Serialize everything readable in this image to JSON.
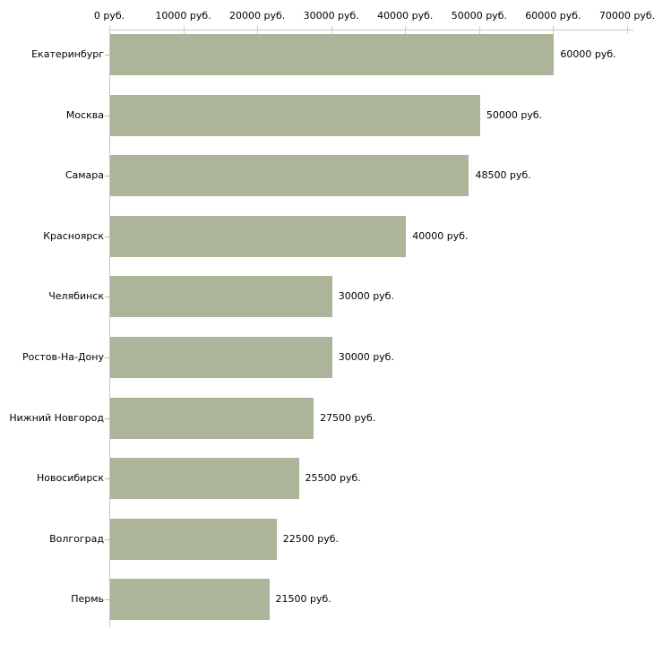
{
  "chart_data": {
    "type": "bar",
    "orientation": "horizontal",
    "title": "",
    "xlabel": "",
    "ylabel": "",
    "grid": false,
    "legend": false,
    "categories": [
      "Екатеринбург",
      "Москва",
      "Самара",
      "Красноярск",
      "Челябинск",
      "Ростов-На-Дону",
      "Нижний Новгород",
      "Новосибирск",
      "Волгоград",
      "Пермь"
    ],
    "values": [
      60000,
      50000,
      48500,
      40000,
      30000,
      30000,
      27500,
      25500,
      22500,
      21500
    ],
    "value_labels": [
      "60000 руб.",
      "50000 руб.",
      "48500 руб.",
      "40000 руб.",
      "30000 руб.",
      "30000 руб.",
      "27500 руб.",
      "25500 руб.",
      "22500 руб.",
      "21500 руб."
    ],
    "x_axis": {
      "position": "top",
      "min": 0,
      "max": 70000,
      "ticks": [
        0,
        10000,
        20000,
        30000,
        40000,
        50000,
        60000,
        70000
      ],
      "tick_labels": [
        "0 руб.",
        "10000 руб.",
        "20000 руб.",
        "30000 руб.",
        "40000 руб.",
        "50000 руб.",
        "60000 руб.",
        "70000 руб."
      ]
    },
    "colors": {
      "bar": "#acb49a",
      "axis_line": "#c6c6c6",
      "x_tick": "#d2d2a4",
      "y_tick": "#b9b99c",
      "text": "#000000",
      "background": "#ffffff"
    }
  }
}
